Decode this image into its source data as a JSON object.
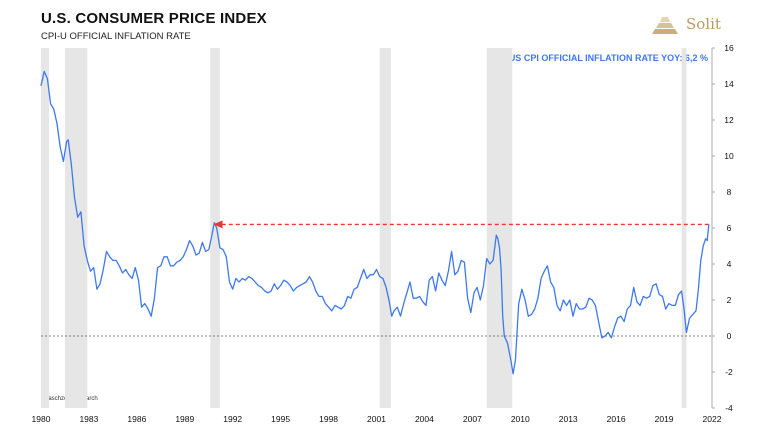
{
  "header": {
    "title": "U.S. CONSUMER PRICE INDEX",
    "subtitle": "CPI-U OFFICIAL INFLATION RATE"
  },
  "logo": {
    "text": "Solit",
    "icon": "stacked-gold-bars-icon",
    "color": "#b89a62"
  },
  "source_note": "Blaschzok Research",
  "legend": {
    "label": "US CPI OFFICIAL INFLATION RATE YOY: 6,2 %"
  },
  "colors": {
    "line": "#3f78ee",
    "recession": "#e6e6e6",
    "arrow": "#e53935",
    "zero_line": "#555555"
  },
  "chart_data": {
    "type": "line",
    "title": "U.S. CONSUMER PRICE INDEX",
    "subtitle": "CPI-U OFFICIAL INFLATION RATE",
    "xlabel": "",
    "ylabel": "",
    "xlim": [
      1980,
      2022
    ],
    "ylim": [
      -4,
      16
    ],
    "x_ticks": [
      "1980",
      "1983",
      "1986",
      "1989",
      "1992",
      "1995",
      "1998",
      "2001",
      "2004",
      "2007",
      "2010",
      "2013",
      "2016",
      "2019",
      "2022"
    ],
    "y_ticks": [
      "16",
      "14",
      "12",
      "10",
      "8",
      "6",
      "4",
      "2",
      "0",
      "-2",
      "-4"
    ],
    "y_axis_side": "right",
    "grid": false,
    "zero_line": "dashed",
    "recession_periods": [
      [
        1980.0,
        1980.5
      ],
      [
        1981.5,
        1982.9
      ],
      [
        1990.6,
        1991.2
      ],
      [
        2001.2,
        2001.9
      ],
      [
        2007.9,
        2009.5
      ],
      [
        2020.1,
        2020.4
      ]
    ],
    "annotation": {
      "type": "dashed-arrow",
      "from": [
        2021.8,
        6.2
      ],
      "to": [
        1990.8,
        6.2
      ]
    },
    "series": [
      {
        "name": "US CPI OFFICIAL INFLATION RATE YOY: 6,2 %",
        "points": [
          [
            1980.0,
            13.9
          ],
          [
            1980.2,
            14.7
          ],
          [
            1980.4,
            14.3
          ],
          [
            1980.6,
            12.9
          ],
          [
            1980.8,
            12.6
          ],
          [
            1981.0,
            11.8
          ],
          [
            1981.2,
            10.5
          ],
          [
            1981.4,
            9.7
          ],
          [
            1981.6,
            10.8
          ],
          [
            1981.7,
            10.9
          ],
          [
            1981.9,
            9.5
          ],
          [
            1982.1,
            7.7
          ],
          [
            1982.3,
            6.6
          ],
          [
            1982.5,
            6.9
          ],
          [
            1982.7,
            5.0
          ],
          [
            1982.9,
            4.2
          ],
          [
            1983.1,
            3.6
          ],
          [
            1983.3,
            3.8
          ],
          [
            1983.5,
            2.6
          ],
          [
            1983.7,
            2.9
          ],
          [
            1983.9,
            3.7
          ],
          [
            1984.1,
            4.7
          ],
          [
            1984.3,
            4.4
          ],
          [
            1984.5,
            4.2
          ],
          [
            1984.7,
            4.2
          ],
          [
            1984.9,
            3.9
          ],
          [
            1985.1,
            3.5
          ],
          [
            1985.3,
            3.7
          ],
          [
            1985.5,
            3.4
          ],
          [
            1985.7,
            3.2
          ],
          [
            1985.9,
            3.8
          ],
          [
            1986.1,
            3.1
          ],
          [
            1986.3,
            1.6
          ],
          [
            1986.5,
            1.8
          ],
          [
            1986.7,
            1.5
          ],
          [
            1986.9,
            1.1
          ],
          [
            1987.1,
            2.1
          ],
          [
            1987.3,
            3.8
          ],
          [
            1987.5,
            3.9
          ],
          [
            1987.7,
            4.4
          ],
          [
            1987.9,
            4.4
          ],
          [
            1988.1,
            3.9
          ],
          [
            1988.3,
            3.9
          ],
          [
            1988.5,
            4.1
          ],
          [
            1988.7,
            4.2
          ],
          [
            1988.9,
            4.4
          ],
          [
            1989.1,
            4.8
          ],
          [
            1989.3,
            5.3
          ],
          [
            1989.5,
            5.0
          ],
          [
            1989.7,
            4.5
          ],
          [
            1989.9,
            4.6
          ],
          [
            1990.1,
            5.2
          ],
          [
            1990.3,
            4.7
          ],
          [
            1990.5,
            4.8
          ],
          [
            1990.7,
            5.6
          ],
          [
            1990.85,
            6.3
          ],
          [
            1991.0,
            6.0
          ],
          [
            1991.2,
            4.9
          ],
          [
            1991.4,
            4.8
          ],
          [
            1991.6,
            4.4
          ],
          [
            1991.8,
            3.0
          ],
          [
            1992.0,
            2.6
          ],
          [
            1992.2,
            3.2
          ],
          [
            1992.4,
            3.0
          ],
          [
            1992.6,
            3.2
          ],
          [
            1992.8,
            3.1
          ],
          [
            1993.0,
            3.3
          ],
          [
            1993.2,
            3.2
          ],
          [
            1993.4,
            3.0
          ],
          [
            1993.6,
            2.8
          ],
          [
            1993.8,
            2.7
          ],
          [
            1994.0,
            2.5
          ],
          [
            1994.2,
            2.4
          ],
          [
            1994.4,
            2.5
          ],
          [
            1994.6,
            2.9
          ],
          [
            1994.8,
            2.6
          ],
          [
            1995.0,
            2.8
          ],
          [
            1995.2,
            3.1
          ],
          [
            1995.4,
            3.0
          ],
          [
            1995.6,
            2.8
          ],
          [
            1995.8,
            2.5
          ],
          [
            1996.0,
            2.7
          ],
          [
            1996.2,
            2.8
          ],
          [
            1996.4,
            2.9
          ],
          [
            1996.6,
            3.0
          ],
          [
            1996.8,
            3.3
          ],
          [
            1997.0,
            3.0
          ],
          [
            1997.2,
            2.5
          ],
          [
            1997.4,
            2.2
          ],
          [
            1997.6,
            2.2
          ],
          [
            1997.8,
            1.8
          ],
          [
            1998.0,
            1.6
          ],
          [
            1998.2,
            1.4
          ],
          [
            1998.4,
            1.7
          ],
          [
            1998.6,
            1.6
          ],
          [
            1998.8,
            1.5
          ],
          [
            1999.0,
            1.7
          ],
          [
            1999.2,
            2.2
          ],
          [
            1999.4,
            2.1
          ],
          [
            1999.6,
            2.6
          ],
          [
            1999.8,
            2.7
          ],
          [
            2000.0,
            3.2
          ],
          [
            2000.2,
            3.7
          ],
          [
            2000.4,
            3.2
          ],
          [
            2000.6,
            3.4
          ],
          [
            2000.8,
            3.4
          ],
          [
            2001.0,
            3.7
          ],
          [
            2001.2,
            3.3
          ],
          [
            2001.4,
            3.2
          ],
          [
            2001.6,
            2.7
          ],
          [
            2001.8,
            1.9
          ],
          [
            2001.95,
            1.1
          ],
          [
            2002.1,
            1.4
          ],
          [
            2002.3,
            1.6
          ],
          [
            2002.5,
            1.1
          ],
          [
            2002.7,
            1.8
          ],
          [
            2002.9,
            2.4
          ],
          [
            2003.1,
            3.0
          ],
          [
            2003.3,
            2.1
          ],
          [
            2003.5,
            2.1
          ],
          [
            2003.7,
            2.2
          ],
          [
            2003.9,
            1.9
          ],
          [
            2004.1,
            1.7
          ],
          [
            2004.3,
            3.1
          ],
          [
            2004.5,
            3.3
          ],
          [
            2004.7,
            2.5
          ],
          [
            2004.9,
            3.5
          ],
          [
            2005.1,
            3.1
          ],
          [
            2005.3,
            2.8
          ],
          [
            2005.5,
            3.6
          ],
          [
            2005.7,
            4.7
          ],
          [
            2005.9,
            3.4
          ],
          [
            2006.1,
            3.6
          ],
          [
            2006.3,
            4.2
          ],
          [
            2006.5,
            4.1
          ],
          [
            2006.7,
            2.1
          ],
          [
            2006.9,
            1.3
          ],
          [
            2007.1,
            2.4
          ],
          [
            2007.3,
            2.7
          ],
          [
            2007.5,
            2.0
          ],
          [
            2007.7,
            2.8
          ],
          [
            2007.9,
            4.3
          ],
          [
            2008.1,
            4.0
          ],
          [
            2008.3,
            4.2
          ],
          [
            2008.5,
            5.6
          ],
          [
            2008.6,
            5.4
          ],
          [
            2008.7,
            4.9
          ],
          [
            2008.8,
            3.7
          ],
          [
            2008.9,
            1.1
          ],
          [
            2009.0,
            0.0
          ],
          [
            2009.2,
            -0.4
          ],
          [
            2009.4,
            -1.3
          ],
          [
            2009.55,
            -2.1
          ],
          [
            2009.7,
            -1.3
          ],
          [
            2009.9,
            1.8
          ],
          [
            2010.1,
            2.6
          ],
          [
            2010.3,
            2.0
          ],
          [
            2010.5,
            1.1
          ],
          [
            2010.7,
            1.2
          ],
          [
            2010.9,
            1.5
          ],
          [
            2011.1,
            2.1
          ],
          [
            2011.3,
            3.2
          ],
          [
            2011.5,
            3.6
          ],
          [
            2011.7,
            3.9
          ],
          [
            2011.9,
            3.0
          ],
          [
            2012.1,
            2.7
          ],
          [
            2012.3,
            1.7
          ],
          [
            2012.5,
            1.4
          ],
          [
            2012.7,
            2.0
          ],
          [
            2012.9,
            1.7
          ],
          [
            2013.1,
            2.0
          ],
          [
            2013.3,
            1.1
          ],
          [
            2013.5,
            1.8
          ],
          [
            2013.7,
            1.5
          ],
          [
            2013.9,
            1.5
          ],
          [
            2014.1,
            1.6
          ],
          [
            2014.3,
            2.1
          ],
          [
            2014.5,
            2.0
          ],
          [
            2014.7,
            1.7
          ],
          [
            2014.9,
            0.8
          ],
          [
            2015.1,
            -0.1
          ],
          [
            2015.3,
            0.0
          ],
          [
            2015.5,
            0.2
          ],
          [
            2015.7,
            -0.1
          ],
          [
            2015.9,
            0.5
          ],
          [
            2016.1,
            1.0
          ],
          [
            2016.3,
            1.1
          ],
          [
            2016.5,
            0.8
          ],
          [
            2016.7,
            1.5
          ],
          [
            2016.9,
            1.7
          ],
          [
            2017.1,
            2.7
          ],
          [
            2017.3,
            1.9
          ],
          [
            2017.5,
            1.7
          ],
          [
            2017.7,
            2.2
          ],
          [
            2017.9,
            2.1
          ],
          [
            2018.1,
            2.2
          ],
          [
            2018.3,
            2.8
          ],
          [
            2018.5,
            2.9
          ],
          [
            2018.7,
            2.3
          ],
          [
            2018.9,
            2.2
          ],
          [
            2019.1,
            1.5
          ],
          [
            2019.3,
            1.8
          ],
          [
            2019.5,
            1.7
          ],
          [
            2019.7,
            1.7
          ],
          [
            2019.9,
            2.3
          ],
          [
            2020.1,
            2.5
          ],
          [
            2020.25,
            1.5
          ],
          [
            2020.4,
            0.2
          ],
          [
            2020.6,
            1.0
          ],
          [
            2020.8,
            1.2
          ],
          [
            2021.0,
            1.4
          ],
          [
            2021.15,
            2.6
          ],
          [
            2021.3,
            4.2
          ],
          [
            2021.45,
            5.0
          ],
          [
            2021.6,
            5.4
          ],
          [
            2021.7,
            5.3
          ],
          [
            2021.8,
            6.2
          ]
        ]
      }
    ]
  }
}
